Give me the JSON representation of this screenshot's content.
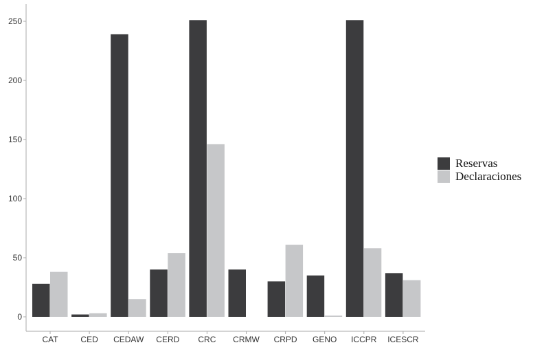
{
  "chart_data": {
    "type": "bar",
    "categories": [
      "CAT",
      "CED",
      "CEDAW",
      "CERD",
      "CRC",
      "CRMW",
      "CRPD",
      "GENO",
      "ICCPR",
      "ICESCR"
    ],
    "series": [
      {
        "name": "Reservas",
        "color": "#3c3c3e",
        "values": [
          28,
          2,
          239,
          40,
          251,
          40,
          30,
          35,
          251,
          37
        ]
      },
      {
        "name": "Declaraciones",
        "color": "#c6c7c9",
        "values": [
          38,
          3,
          15,
          54,
          146,
          0,
          61,
          1,
          58,
          31
        ]
      }
    ],
    "yticks": [
      0,
      50,
      100,
      150,
      200,
      250
    ],
    "ylim": [
      0,
      262
    ],
    "title": "",
    "xlabel": "",
    "ylabel": "",
    "grid": false,
    "legend_position": "right"
  }
}
